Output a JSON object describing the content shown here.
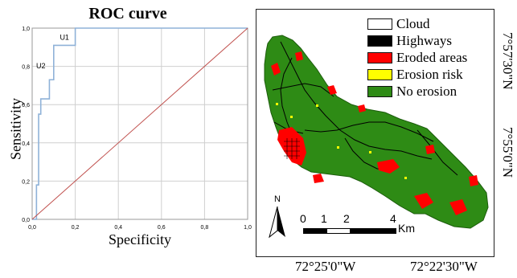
{
  "chart_data": {
    "type": "line",
    "title": "ROC curve",
    "xlabel": "Specificity",
    "ylabel": "Sensitivity",
    "xlim": [
      0,
      1
    ],
    "ylim": [
      0,
      1
    ],
    "xticks": [
      "0,0",
      "0,2",
      "0,4",
      "0,6",
      "0,8",
      "1,0"
    ],
    "yticks": [
      "0,0",
      "0,2",
      "0,4",
      "0,6",
      "0,8",
      "1,0"
    ],
    "grid": true,
    "series": [
      {
        "color": "#8fb2d8",
        "x": [
          0.0,
          0.02,
          0.02,
          0.03,
          0.03,
          0.04,
          0.04,
          0.08,
          0.08,
          0.1,
          0.1,
          0.2,
          0.2,
          1.0
        ],
        "y": [
          0.0,
          0.0,
          0.18,
          0.18,
          0.55,
          0.55,
          0.63,
          0.63,
          0.73,
          0.73,
          0.91,
          0.91,
          1.0,
          1.0
        ]
      },
      {
        "color": "#c0504d",
        "x": [
          0,
          1
        ],
        "y": [
          0,
          1
        ]
      }
    ],
    "annotations": [
      {
        "text": "U1",
        "x": 0.15,
        "y": 0.94
      },
      {
        "text": "U2",
        "x": 0.04,
        "y": 0.79
      }
    ]
  },
  "map": {
    "legend": [
      {
        "label": "Cloud",
        "color": "#ffffff"
      },
      {
        "label": "Highways",
        "color": "#000000"
      },
      {
        "label": "Eroded areas",
        "color": "#ff0000"
      },
      {
        "label": "Erosion risk",
        "color": "#ffff00"
      },
      {
        "label": "No erosion",
        "color": "#2e8b15"
      }
    ],
    "north_label": "N",
    "scale": {
      "ticks": [
        "0",
        "1",
        "2",
        "4"
      ],
      "unit": "Km"
    },
    "lon_labels": [
      "72°25'0\"W",
      "72°22'30\"W"
    ],
    "lat_labels": [
      "7°57'30\"N",
      "7°55'0\"N"
    ]
  }
}
